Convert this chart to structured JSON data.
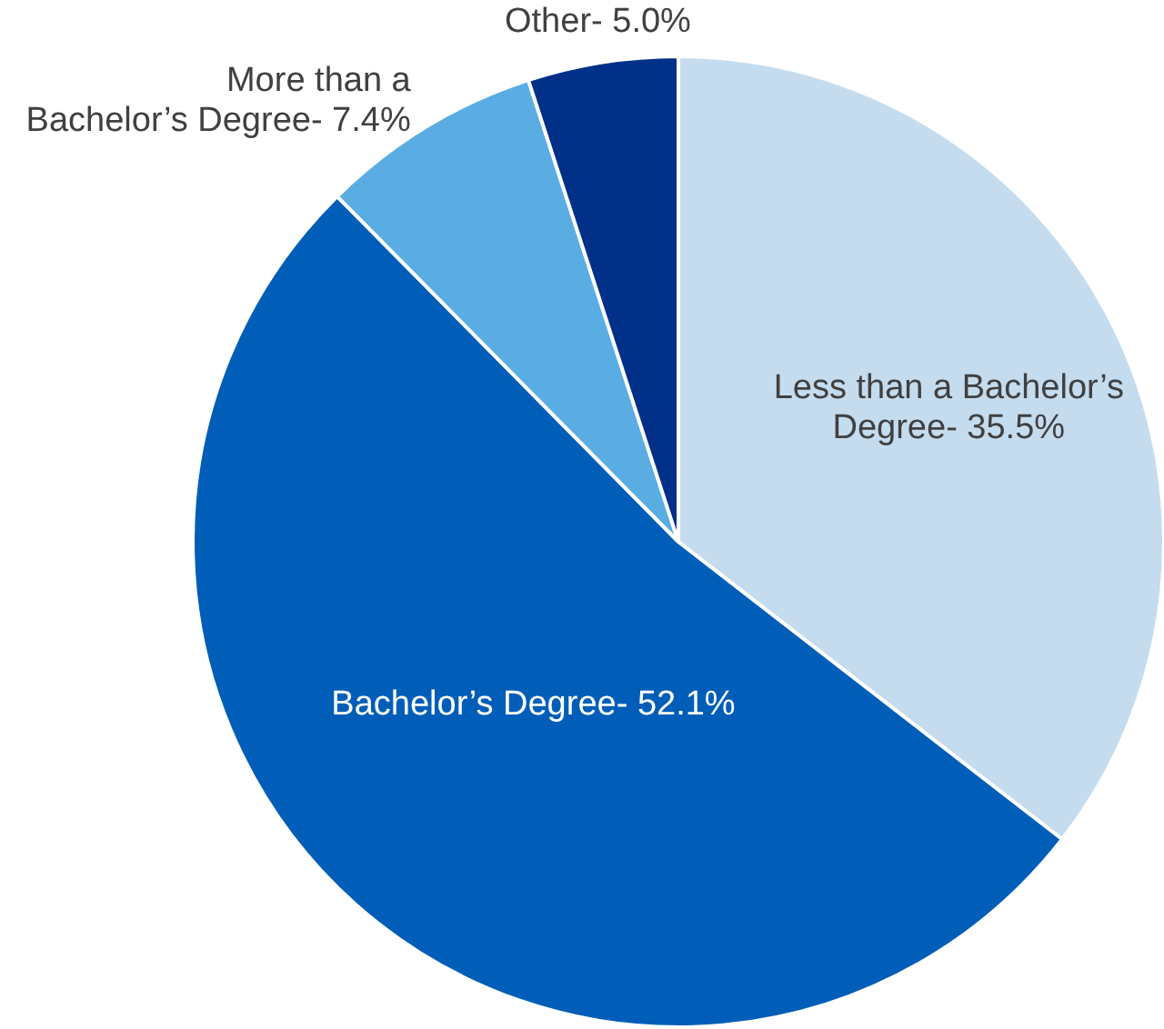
{
  "chart_data": {
    "type": "pie",
    "categories": [
      null,
      null,
      null,
      null
    ],
    "values": [
      35.5,
      52.1,
      7.4,
      5.0
    ],
    "colors": [
      "#c5dcef",
      "#005eb8",
      "#5aade3",
      "#003087"
    ],
    "value_labels": [
      "Less than a Bachelor’s Degree- 35.5%",
      "Bachelor’s Degree- 52.1%",
      "More than a Bachelor’s Degree- 7.4%",
      "Other- 5.0%"
    ],
    "legend": false
  }
}
